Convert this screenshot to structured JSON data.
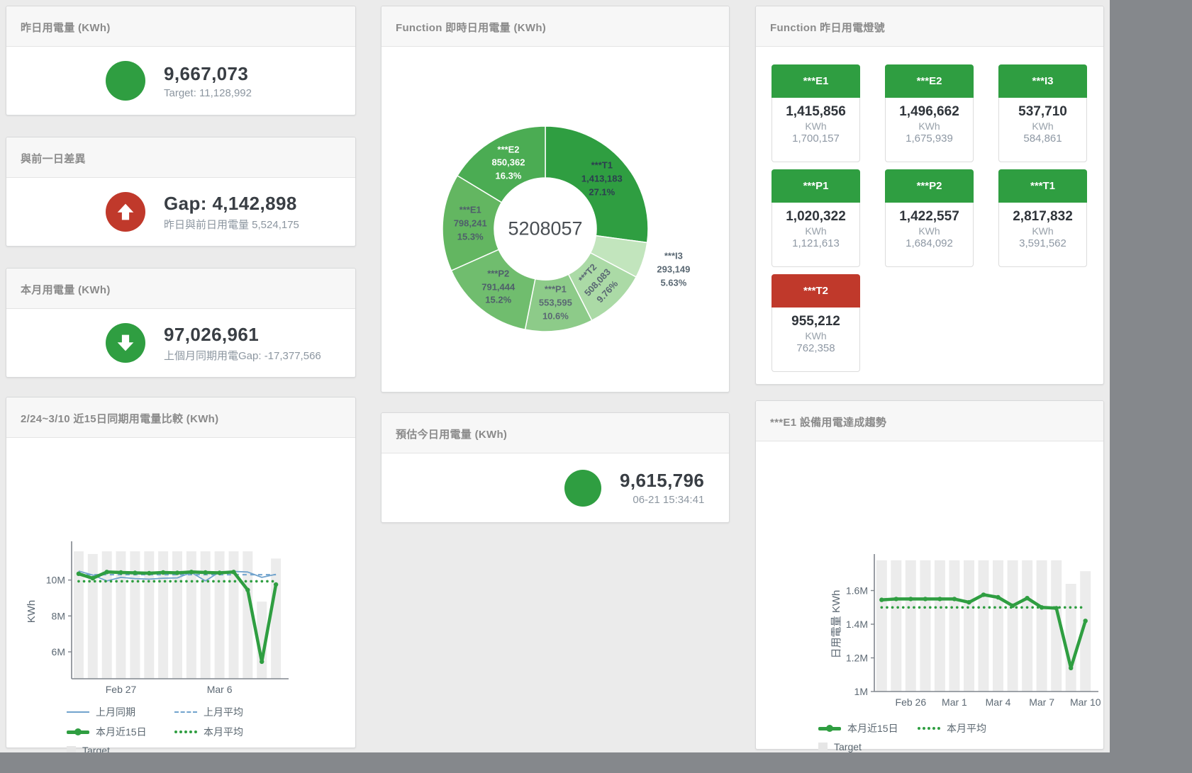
{
  "colors": {
    "green": "#2f9e41",
    "red": "#c0392b",
    "blue": "#71a3cd",
    "bar_gray": "#ececec",
    "value_text": "#393e44",
    "sub_text": "#8c96a0"
  },
  "cards": {
    "yesterday": {
      "title": "昨日用電量 (KWh)",
      "value": "9,667,073",
      "subtext": "Target: 11,128,992"
    },
    "gap": {
      "title": "與前一日差異",
      "value": "Gap: 4,142,898",
      "subtext": "昨日與前日用電量 5,524,175"
    },
    "month": {
      "title": "本月用電量 (KWh)",
      "value": "97,026,961",
      "subtext": "上個月同期用電Gap: -17,377,566"
    },
    "estimate": {
      "title": "預估今日用電量 (KWh)",
      "value": "9,615,796",
      "subtext": "06-21 15:34:41"
    },
    "donut": {
      "title": "Function 即時日用電量 (KWh)"
    },
    "lights": {
      "title": "Function 昨日用電燈號",
      "tiles": [
        {
          "name": "***E1",
          "value": "1,415,856",
          "unit": "KWh",
          "target": "1,700,157",
          "status": "green"
        },
        {
          "name": "***E2",
          "value": "1,496,662",
          "unit": "KWh",
          "target": "1,675,939",
          "status": "green"
        },
        {
          "name": "***I3",
          "value": "537,710",
          "unit": "KWh",
          "target": "584,861",
          "status": "green"
        },
        {
          "name": "***P1",
          "value": "1,020,322",
          "unit": "KWh",
          "target": "1,121,613",
          "status": "green"
        },
        {
          "name": "***P2",
          "value": "1,422,557",
          "unit": "KWh",
          "target": "1,684,092",
          "status": "green"
        },
        {
          "name": "***T1",
          "value": "2,817,832",
          "unit": "KWh",
          "target": "3,591,562",
          "status": "green"
        },
        {
          "name": "***T2",
          "value": "955,212",
          "unit": "KWh",
          "target": "762,358",
          "status": "red"
        }
      ]
    },
    "compare": {
      "title": "2/24~3/10 近15日同期用電量比較 (KWh)",
      "legend": [
        {
          "label": "上月同期",
          "swatch": "thin-blue"
        },
        {
          "label": "上月平均",
          "swatch": "dash-blue"
        },
        {
          "label": "本月近15日",
          "swatch": "thick-green"
        },
        {
          "label": "本月平均",
          "swatch": "dot-green"
        },
        {
          "label": "Target",
          "swatch": "target-gray"
        }
      ]
    },
    "trend": {
      "title": "***E1 設備用電達成趨勢",
      "legend": [
        {
          "label": "本月近15日",
          "swatch": "thick-green"
        },
        {
          "label": "本月平均",
          "swatch": "dot-green"
        },
        {
          "label": "Target",
          "swatch": "target-gray"
        }
      ]
    }
  },
  "chart_data": [
    {
      "id": "realtime_donut",
      "type": "pie",
      "title": "Function 即時日用電量 (KWh)",
      "center_label": "5208057",
      "slices": [
        {
          "name": "***T1",
          "value": 1413183,
          "pct": "27.1%",
          "color": "#2f9e41",
          "label_color": "#2c3e50"
        },
        {
          "name": "***I3",
          "value": 293149,
          "pct": "5.63%",
          "color": "#c2e5bd",
          "label_color": "#5a6873",
          "outside": true
        },
        {
          "name": "***T2",
          "value": 508083,
          "pct": "9.76%",
          "color": "#abdaa6",
          "label_color": "#5a6873",
          "rotate": -47
        },
        {
          "name": "***P1",
          "value": 553595,
          "pct": "10.6%",
          "color": "#8dcb89",
          "label_color": "#5a6873"
        },
        {
          "name": "***P2",
          "value": 791444,
          "pct": "15.2%",
          "color": "#70bd6e",
          "label_color": "#4f5f6b"
        },
        {
          "name": "***E1",
          "value": 798241,
          "pct": "15.3%",
          "color": "#63b661",
          "label_color": "#4f5f6b"
        },
        {
          "name": "***E2",
          "value": 850362,
          "pct": "16.3%",
          "color": "#4bac53",
          "label_color": "#ffffff"
        }
      ]
    },
    {
      "id": "compare15",
      "type": "line",
      "title": "2/24~3/10 近15日同期用電量比較 (KWh)",
      "ylabel": "KWh",
      "values_unit": "millions_kwh",
      "ylim": [
        4.5,
        12.0
      ],
      "yticks": [
        {
          "v": 6,
          "label": "6M"
        },
        {
          "v": 8,
          "label": "8M"
        },
        {
          "v": 10,
          "label": "10M"
        }
      ],
      "xticks": [
        {
          "i": 3,
          "label": "Feb 27"
        },
        {
          "i": 10,
          "label": "Mar 6"
        }
      ],
      "bars": {
        "name": "Target",
        "color": "#ececec",
        "values_m": [
          11.6,
          11.45,
          11.6,
          11.6,
          11.6,
          11.6,
          11.6,
          11.6,
          11.6,
          11.6,
          11.6,
          11.6,
          11.6,
          8.8,
          11.2
        ]
      },
      "series": [
        {
          "name": "上月同期",
          "style": "solid-thin",
          "color": "#71a3cd",
          "values_m": [
            10.5,
            10.28,
            9.95,
            10.15,
            10.08,
            10.05,
            10.1,
            10.12,
            10.42,
            9.95,
            10.45,
            10.48,
            10.45,
            10.15,
            10.32
          ]
        },
        {
          "name": "上月平均",
          "style": "dashed",
          "color": "#71a3cd",
          "values_m": [
            10.3,
            10.3,
            10.3,
            10.3,
            10.3,
            10.3,
            10.3,
            10.3,
            10.3,
            10.3,
            10.3,
            10.3,
            10.3,
            10.3,
            10.3
          ]
        },
        {
          "name": "本月近15日",
          "style": "solid-thick",
          "color": "#2f9e41",
          "values_m": [
            10.35,
            10.1,
            10.45,
            10.42,
            10.4,
            10.38,
            10.42,
            10.4,
            10.45,
            10.42,
            10.4,
            10.45,
            9.45,
            5.45,
            9.75
          ]
        },
        {
          "name": "本月平均",
          "style": "dotted",
          "color": "#2f9e41",
          "values_m": [
            9.93,
            9.93,
            9.93,
            9.93,
            9.93,
            9.93,
            9.93,
            9.93,
            9.93,
            9.93,
            9.93,
            9.93,
            9.93,
            9.93,
            9.93
          ]
        }
      ]
    },
    {
      "id": "e1_trend",
      "type": "line",
      "title": "***E1 設備用電達成趨勢",
      "ylabel": "日用電量 KWh",
      "values_unit": "millions_kwh",
      "ylim": [
        1.0,
        1.8
      ],
      "yticks": [
        {
          "v": 1,
          "label": "1M"
        },
        {
          "v": 1.2,
          "label": "1.2M"
        },
        {
          "v": 1.4,
          "label": "1.4M"
        },
        {
          "v": 1.6,
          "label": "1.6M"
        }
      ],
      "xticks": [
        {
          "i": 2,
          "label": "Feb 26"
        },
        {
          "i": 5,
          "label": "Mar 1"
        },
        {
          "i": 8,
          "label": "Mar 4"
        },
        {
          "i": 11,
          "label": "Mar 7"
        },
        {
          "i": 14,
          "label": "Mar 10"
        }
      ],
      "bars": {
        "name": "Target",
        "color": "#ececec",
        "values_m": [
          1.78,
          1.78,
          1.78,
          1.78,
          1.78,
          1.78,
          1.78,
          1.78,
          1.78,
          1.78,
          1.78,
          1.78,
          1.78,
          1.64,
          1.715
        ]
      },
      "series": [
        {
          "name": "本月近15日",
          "style": "solid-thick",
          "color": "#2f9e41",
          "values_m": [
            1.545,
            1.55,
            1.55,
            1.55,
            1.55,
            1.55,
            1.53,
            1.575,
            1.56,
            1.51,
            1.555,
            1.5,
            1.495,
            1.14,
            1.42
          ]
        },
        {
          "name": "本月平均",
          "style": "dotted",
          "color": "#2f9e41",
          "values_m": [
            1.5,
            1.5,
            1.5,
            1.5,
            1.5,
            1.5,
            1.5,
            1.5,
            1.5,
            1.5,
            1.5,
            1.5,
            1.5,
            1.5,
            1.5
          ]
        }
      ]
    }
  ]
}
